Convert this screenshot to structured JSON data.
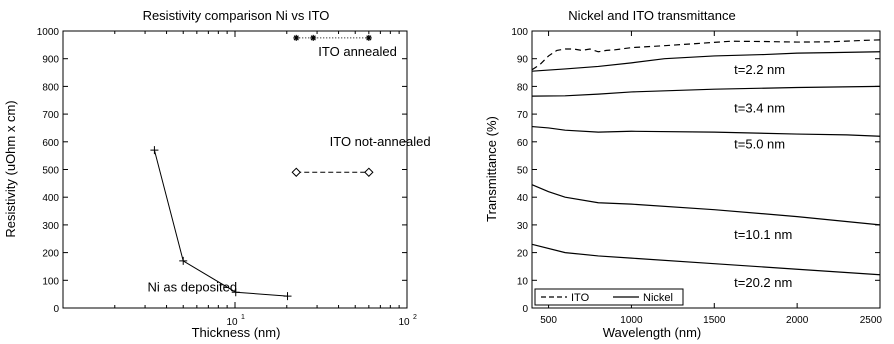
{
  "chart_data": [
    {
      "type": "line",
      "title": "Resistivity comparison Ni vs ITO",
      "xlabel": "Thickness (nm)",
      "ylabel": "Resistivity (uOhm x cm)",
      "xscale": "log",
      "xlim": [
        1,
        100
      ],
      "ylim": [
        0,
        1000
      ],
      "ytick_labels": [
        "0",
        "100",
        "200",
        "300",
        "400",
        "500",
        "600",
        "700",
        "800",
        "900",
        "1000"
      ],
      "xtick_labels": [
        {
          "value": 10,
          "base": "10",
          "exp": "1"
        },
        {
          "value": 100,
          "base": "10",
          "exp": "2"
        }
      ],
      "series": [
        {
          "name": "Ni as deposited",
          "marker": "plus",
          "line": "solid",
          "x": [
            3.4,
            5.0,
            10.1,
            20.2
          ],
          "y": [
            570,
            170,
            57,
            43
          ]
        },
        {
          "name": "ITO annealed",
          "marker": "star",
          "line": "dotted",
          "x": [
            22.7,
            28.5,
            60
          ],
          "y": [
            975,
            975,
            975
          ]
        },
        {
          "name": "ITO not-annealed",
          "marker": "diamond",
          "line": "dashed",
          "x": [
            22.7,
            60
          ],
          "y": [
            490,
            490
          ]
        }
      ],
      "annotations": [
        {
          "text": "ITO annealed",
          "x": 30.5,
          "y": 910
        },
        {
          "text": "ITO not-annealed",
          "x": 35.5,
          "y": 585
        },
        {
          "text": "Ni as deposited",
          "x": 3.1,
          "y": 60
        }
      ]
    },
    {
      "type": "line",
      "title": "Nickel and ITO transmittance",
      "xlabel": "Wavelength (nm)",
      "ylabel": "Transmittance (%)",
      "xlim": [
        400,
        2500
      ],
      "ylim": [
        0,
        100
      ],
      "xtick_labels": [
        "500",
        "1000",
        "1500",
        "2000",
        "2500"
      ],
      "ytick_labels": [
        "0",
        "10",
        "20",
        "30",
        "40",
        "50",
        "60",
        "70",
        "80",
        "90",
        "100"
      ],
      "legend": {
        "position": "bottom-left",
        "entries": [
          {
            "label": "ITO",
            "line": "dashed"
          },
          {
            "label": "Nickel",
            "line": "solid"
          }
        ]
      },
      "series": [
        {
          "name": "ITO",
          "line": "dashed",
          "x": [
            400,
            450,
            500,
            550,
            600,
            650,
            700,
            750,
            800,
            850,
            900,
            1000,
            1200,
            1400,
            1600,
            1800,
            2000,
            2200,
            2400,
            2500
          ],
          "y": [
            86,
            88,
            91,
            93,
            93.5,
            93.5,
            93,
            93.5,
            92.5,
            93,
            93.2,
            94,
            94.7,
            95.5,
            96.3,
            96.2,
            96,
            96.1,
            96.6,
            96.8
          ]
        },
        {
          "name": "t=2.2 nm",
          "line": "solid",
          "x": [
            400,
            600,
            800,
            1000,
            1200,
            1500,
            1800,
            2000,
            2200,
            2500
          ],
          "y": [
            85.5,
            86.3,
            87.2,
            88.5,
            90,
            91,
            91.5,
            92,
            92.2,
            92.5
          ]
        },
        {
          "name": "t=3.4 nm",
          "line": "solid",
          "x": [
            400,
            600,
            800,
            1000,
            1500,
            2000,
            2500
          ],
          "y": [
            76.5,
            76.6,
            77.2,
            78,
            79,
            79.6,
            80
          ]
        },
        {
          "name": "t=5.0 nm",
          "line": "solid",
          "x": [
            400,
            500,
            600,
            800,
            1000,
            1500,
            2000,
            2300,
            2500
          ],
          "y": [
            65.5,
            65,
            64.2,
            63.5,
            63.8,
            63.5,
            62.8,
            62.5,
            62
          ]
        },
        {
          "name": "t=10.1 nm",
          "line": "solid",
          "x": [
            400,
            500,
            600,
            800,
            1000,
            1500,
            2000,
            2500
          ],
          "y": [
            44.5,
            42,
            40,
            38,
            37.5,
            35.5,
            33,
            30
          ]
        },
        {
          "name": "t=20.2 nm",
          "line": "solid",
          "x": [
            400,
            600,
            800,
            1000,
            1500,
            2000,
            2500
          ],
          "y": [
            23,
            20,
            18.8,
            18,
            16,
            14,
            12
          ]
        }
      ],
      "annotations": [
        {
          "text": "t=2.2 nm",
          "x": 1620,
          "y": 84.5
        },
        {
          "text": "t=3.4 nm",
          "x": 1620,
          "y": 70.5
        },
        {
          "text": "t=5.0 nm",
          "x": 1620,
          "y": 57.5
        },
        {
          "text": "t=10.1 nm",
          "x": 1620,
          "y": 25
        },
        {
          "text": "t=20.2 nm",
          "x": 1620,
          "y": 7.5
        }
      ]
    }
  ]
}
